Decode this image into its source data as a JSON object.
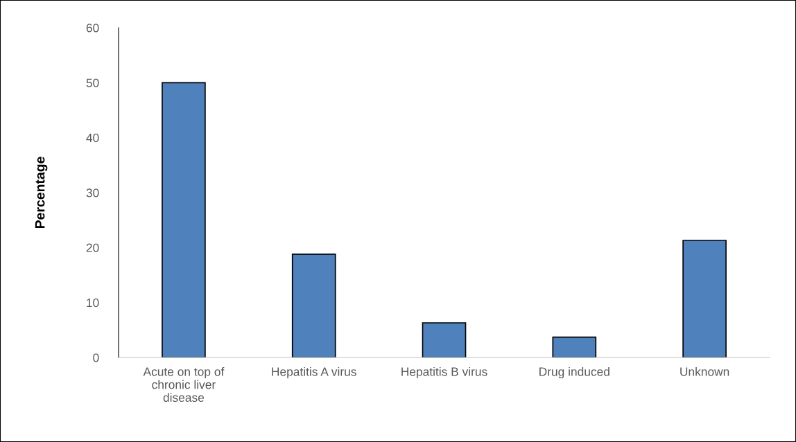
{
  "chart_data": {
    "type": "bar",
    "ylabel": "Percentage",
    "categories": [
      "Acute on top of\nchronic liver\ndisease",
      "Hepatitis A virus",
      "Hepatitis B virus",
      "Drug induced",
      "Unknown"
    ],
    "values": [
      50,
      18.8,
      6.3,
      3.7,
      21.3
    ],
    "color": "#4f81bd",
    "ylim": [
      0,
      60
    ],
    "yticks": [
      0,
      10,
      20,
      30,
      40,
      50,
      60
    ],
    "grid": false
  }
}
